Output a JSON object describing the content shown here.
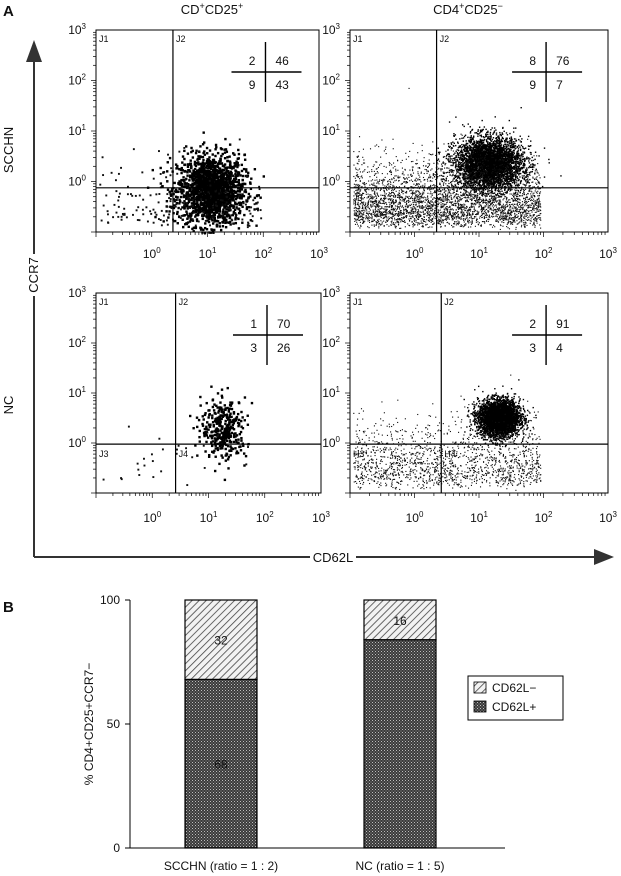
{
  "figure": {
    "panel_a_label": "A",
    "panel_b_label": "B",
    "row_labels": [
      "SCCHN",
      "NC"
    ],
    "col_headers": [
      {
        "main": "CD",
        "sup1": "+",
        "main2": "CD25",
        "sup2": "+"
      },
      {
        "main": "CD4",
        "sup1": "+",
        "main2": "CD25",
        "sup2": "−"
      }
    ],
    "y_axis_title": "CCR7",
    "x_axis_title": "CD62L",
    "log_tick_labels": [
      "10",
      "10",
      "10",
      "10"
    ],
    "log_tick_exponents": [
      "0",
      "1",
      "2",
      "3"
    ],
    "y_tick_labels": [
      "10",
      "10",
      "10",
      "10"
    ],
    "y_tick_exponents": [
      "0",
      "1",
      "2",
      "3"
    ]
  },
  "chart_data": [
    {
      "type": "scatter",
      "panel": "SCCHN CD+CD25+",
      "xscale": "log",
      "yscale": "log",
      "xlim": [
        0.1,
        1000
      ],
      "ylim": [
        0.1,
        1000
      ],
      "gate": {
        "x": 2.4,
        "y": 0.75
      },
      "gate_labels": [
        "J1",
        "J2"
      ],
      "quadrant_percent": {
        "upper_left": 2,
        "upper_right": 46,
        "lower_left": 9,
        "lower_right": 43
      },
      "population": {
        "center_x": 11,
        "center_y": 0.7,
        "spread_x": 0.3,
        "spread_y": 0.35,
        "n": 1700,
        "style": "square",
        "background_n": 200
      }
    },
    {
      "type": "scatter",
      "panel": "SCCHN CD4+CD25-",
      "xscale": "log",
      "yscale": "log",
      "xlim": [
        0.1,
        1000
      ],
      "ylim": [
        0.1,
        1000
      ],
      "gate": {
        "x": 2.2,
        "y": 0.75
      },
      "gate_labels": [
        "J1",
        "J2",
        "J3",
        "J4"
      ],
      "quadrant_percent": {
        "upper_left": 8,
        "upper_right": 76,
        "lower_left": 9,
        "lower_right": 7
      },
      "population": {
        "center_x": 14,
        "center_y": 2.3,
        "spread_x": 0.26,
        "spread_y": 0.26,
        "n": 4200,
        "style": "dot",
        "background_n": 3400
      }
    },
    {
      "type": "scatter",
      "panel": "NC CD+CD25+",
      "xscale": "log",
      "yscale": "log",
      "xlim": [
        0.1,
        1000
      ],
      "ylim": [
        0.1,
        1000
      ],
      "gate": {
        "x": 2.6,
        "y": 0.95
      },
      "gate_labels": [
        "J1",
        "J2",
        "J3",
        "J4"
      ],
      "quadrant_percent": {
        "upper_left": 1,
        "upper_right": 70,
        "lower_left": 3,
        "lower_right": 26
      },
      "population": {
        "center_x": 18,
        "center_y": 2.0,
        "spread_x": 0.2,
        "spread_y": 0.3,
        "n": 360,
        "style": "square",
        "background_n": 30
      }
    },
    {
      "type": "scatter",
      "panel": "NC CD4+CD25-",
      "xscale": "log",
      "yscale": "log",
      "xlim": [
        0.1,
        1000
      ],
      "ylim": [
        0.1,
        1000
      ],
      "gate": {
        "x": 2.6,
        "y": 0.95
      },
      "gate_labels": [
        "J1",
        "J2",
        "H3",
        "H4"
      ],
      "quadrant_percent": {
        "upper_left": 2,
        "upper_right": 91,
        "lower_left": 3,
        "lower_right": 4
      },
      "population": {
        "center_x": 20,
        "center_y": 3.2,
        "spread_x": 0.16,
        "spread_y": 0.18,
        "n": 3800,
        "style": "dot",
        "background_n": 1500
      }
    },
    {
      "type": "bar",
      "stacked": true,
      "categories": [
        "SCCHN (ratio = 1 : 2)",
        "NC (ratio = 1 : 5)"
      ],
      "series": [
        {
          "name": "CD62L+",
          "values": [
            68,
            84
          ],
          "color": "#555555",
          "labels": [
            "68",
            ""
          ]
        },
        {
          "name": "CD62L−",
          "values": [
            32,
            16
          ],
          "color": "#e8e8e8",
          "labels": [
            "32",
            "16"
          ]
        }
      ],
      "ylabel": "% CD4+CD25+CCR7−",
      "ylim": [
        0,
        100
      ],
      "yticks": [
        0,
        50,
        100
      ],
      "legend": [
        {
          "name": "CD62L−",
          "pattern": "hatch"
        },
        {
          "name": "CD62L+",
          "pattern": "dots"
        }
      ],
      "legend_position": "right"
    }
  ]
}
